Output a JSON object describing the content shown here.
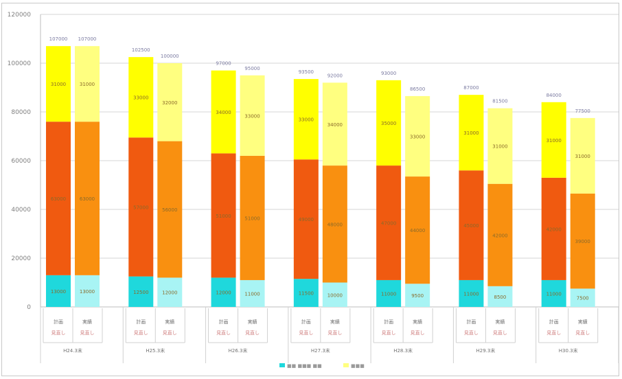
{
  "chart_data": {
    "type": "bar",
    "stacked": true,
    "ylim": [
      0,
      120000
    ],
    "yticks": [
      {
        "value": 0,
        "label": "0"
      },
      {
        "value": 20000,
        "label": "20000"
      },
      {
        "value": 40000,
        "label": "40000"
      },
      {
        "value": 60000,
        "label": "60000"
      },
      {
        "value": 80000,
        "label": "80000"
      },
      {
        "value": 100000,
        "label": "100000"
      },
      {
        "value": 120000,
        "label": "120000"
      }
    ],
    "grid": true,
    "legend_position": "bottom",
    "stack_colors_dark": [
      "#1fd8dc",
      "#f05a10",
      "#ffff00"
    ],
    "stack_colors_light": [
      "#a8f4f4",
      "#f99010",
      "#ffff80"
    ],
    "groups": [
      {
        "label": "H24.3末",
        "bars": [
          {
            "row1": "計画",
            "row2": "見直し",
            "values": [
              13000,
              63000,
              31000
            ],
            "total": "107000"
          },
          {
            "row1": "実績",
            "row2": "見直し",
            "values": [
              13000,
              63000,
              31000
            ],
            "total": "107000"
          }
        ]
      },
      {
        "label": "H25.3末",
        "bars": [
          {
            "row1": "計画",
            "row2": "見直し",
            "values": [
              12500,
              57000,
              33000
            ],
            "total": "102500"
          },
          {
            "row1": "実績",
            "row2": "見直し",
            "values": [
              12000,
              56000,
              32000
            ],
            "total": "100000"
          }
        ]
      },
      {
        "label": "H26.3末",
        "bars": [
          {
            "row1": "計画",
            "row2": "見直し",
            "values": [
              12000,
              51000,
              34000
            ],
            "total": "97000"
          },
          {
            "row1": "実績",
            "row2": "見直し",
            "values": [
              11000,
              51000,
              33000
            ],
            "total": "95000"
          }
        ]
      },
      {
        "label": "H27.3末",
        "bars": [
          {
            "row1": "計画",
            "row2": "見直し",
            "values": [
              11500,
              49000,
              33000
            ],
            "total": "93500"
          },
          {
            "row1": "実績",
            "row2": "見直し",
            "values": [
              10000,
              48000,
              34000
            ],
            "total": "92000"
          }
        ]
      },
      {
        "label": "H28.3末",
        "bars": [
          {
            "row1": "計画",
            "row2": "見直し",
            "values": [
              11000,
              47000,
              35000
            ],
            "total": "93000"
          },
          {
            "row1": "実績",
            "row2": "見直し",
            "values": [
              9500,
              44000,
              33000
            ],
            "total": "86500"
          }
        ]
      },
      {
        "label": "H29.3末",
        "bars": [
          {
            "row1": "計画",
            "row2": "見直し",
            "values": [
              11000,
              45000,
              31000
            ],
            "total": "87000"
          },
          {
            "row1": "実績",
            "row2": "見直し",
            "values": [
              8500,
              42000,
              31000
            ],
            "total": "81500"
          }
        ]
      },
      {
        "label": "H30.3末",
        "bars": [
          {
            "row1": "計画",
            "row2": "見直し",
            "values": [
              11000,
              42000,
              31000
            ],
            "total": "84000"
          },
          {
            "row1": "実績",
            "row2": "見直し",
            "values": [
              7500,
              39000,
              31000
            ],
            "total": "77500"
          }
        ]
      }
    ],
    "legend": [
      {
        "label": "■■ ■■■ ■■",
        "color": "#1fd8dc"
      },
      {
        "label": "■■■",
        "color": "#ffff80"
      }
    ]
  }
}
